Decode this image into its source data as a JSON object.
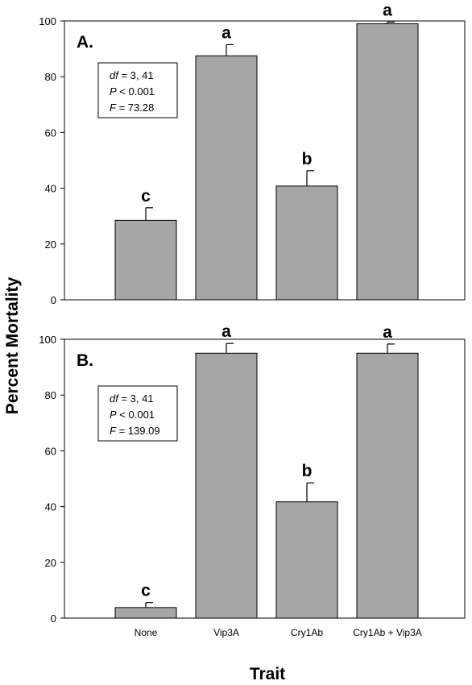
{
  "figure": {
    "ylabel": "Percent Mortality",
    "xlabel": "Trait",
    "bar_color": "#a6a6a6",
    "bar_edge_color": "#000000",
    "frame_color": "#000000"
  },
  "chart_data": [
    {
      "type": "bar",
      "panel_label": "A.",
      "categories": [
        "None",
        "Vip3A",
        "Cry1Ab",
        "Cry1Ab + Vip3A"
      ],
      "values": [
        28.5,
        87.5,
        40.8,
        99.0
      ],
      "error": [
        4.5,
        4.0,
        5.5,
        0.6
      ],
      "letters": [
        "c",
        "a",
        "b",
        "a"
      ],
      "ylim": [
        0,
        100
      ],
      "yticks": [
        0,
        20,
        40,
        60,
        80,
        100
      ],
      "show_xticklabels": false,
      "stats": [
        {
          "name": "df",
          "op": " = ",
          "value": "3, 41"
        },
        {
          "name": "P",
          "op": " < ",
          "value": "0.001"
        },
        {
          "name": "F",
          "op": " = ",
          "value": "73.28"
        }
      ]
    },
    {
      "type": "bar",
      "panel_label": "B.",
      "categories": [
        "None",
        "Vip3A",
        "Cry1Ab",
        "Cry1Ab + Vip3A"
      ],
      "values": [
        3.8,
        95.0,
        41.7,
        95.0
      ],
      "error": [
        1.8,
        3.5,
        6.8,
        3.3
      ],
      "letters": [
        "c",
        "a",
        "b",
        "a"
      ],
      "ylim": [
        0,
        100
      ],
      "yticks": [
        0,
        20,
        40,
        60,
        80,
        100
      ],
      "show_xticklabels": true,
      "stats": [
        {
          "name": "df",
          "op": " = ",
          "value": "3, 41"
        },
        {
          "name": "P",
          "op": " < ",
          "value": "0.001"
        },
        {
          "name": "F",
          "op": " = ",
          "value": "139.09"
        }
      ]
    }
  ]
}
